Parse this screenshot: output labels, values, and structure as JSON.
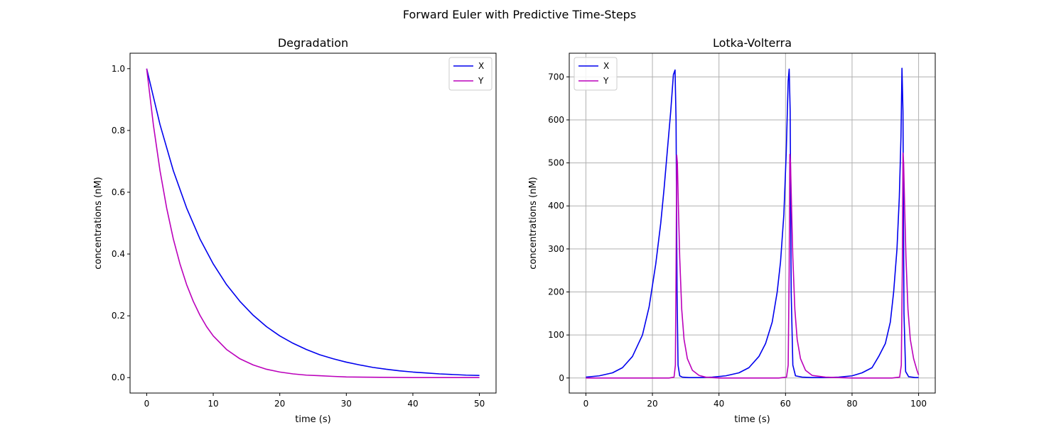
{
  "suptitle": "Forward Euler with Predictive Time-Steps",
  "colors": {
    "X": "#0000ee",
    "Y": "#bb00bb"
  },
  "chart_data": [
    {
      "type": "line",
      "title": "Degradation",
      "xlabel": "time (s)",
      "ylabel": "concentrations (nM)",
      "xlim": [
        -2.5,
        52.5
      ],
      "ylim": [
        -0.05,
        1.05
      ],
      "xticks": [
        0,
        10,
        20,
        30,
        40,
        50
      ],
      "xtick_labels": [
        "0",
        "10",
        "20",
        "30",
        "40",
        "50"
      ],
      "yticks": [
        0.0,
        0.2,
        0.4,
        0.6,
        0.8,
        1.0
      ],
      "ytick_labels": [
        "0.0",
        "0.2",
        "0.4",
        "0.6",
        "0.8",
        "1.0"
      ],
      "grid": false,
      "legend": "upper-right",
      "series": [
        {
          "name": "X",
          "color": "#0000ee",
          "x": [
            0,
            2,
            4,
            6,
            8,
            10,
            12,
            14,
            16,
            18,
            20,
            22,
            24,
            26,
            28,
            30,
            32,
            34,
            36,
            38,
            40,
            42,
            44,
            46,
            48,
            50
          ],
          "y": [
            1.0,
            0.819,
            0.67,
            0.549,
            0.449,
            0.368,
            0.301,
            0.247,
            0.202,
            0.165,
            0.135,
            0.111,
            0.091,
            0.074,
            0.061,
            0.05,
            0.041,
            0.033,
            0.027,
            0.022,
            0.018,
            0.015,
            0.012,
            0.01,
            0.008,
            0.007
          ]
        },
        {
          "name": "Y",
          "color": "#bb00bb",
          "x": [
            0,
            1,
            2,
            3,
            4,
            5,
            6,
            7,
            8,
            9,
            10,
            12,
            14,
            16,
            18,
            20,
            22,
            24,
            26,
            28,
            30,
            35,
            40,
            45,
            50
          ],
          "y": [
            1.0,
            0.819,
            0.67,
            0.549,
            0.449,
            0.368,
            0.301,
            0.247,
            0.202,
            0.165,
            0.135,
            0.091,
            0.061,
            0.041,
            0.027,
            0.018,
            0.012,
            0.008,
            0.006,
            0.004,
            0.002,
            0.001,
            0.0,
            0.0,
            0.0
          ]
        }
      ]
    },
    {
      "type": "line",
      "title": "Lotka-Volterra",
      "xlabel": "time (s)",
      "ylabel": "concentrations (nM)",
      "xlim": [
        -5,
        105
      ],
      "ylim": [
        -35,
        755
      ],
      "xticks": [
        0,
        20,
        40,
        60,
        80,
        100
      ],
      "xtick_labels": [
        "0",
        "20",
        "40",
        "60",
        "80",
        "100"
      ],
      "yticks": [
        0,
        100,
        200,
        300,
        400,
        500,
        600,
        700
      ],
      "ytick_labels": [
        "0",
        "100",
        "200",
        "300",
        "400",
        "500",
        "600",
        "700"
      ],
      "grid": true,
      "legend": "upper-left",
      "series": [
        {
          "name": "X",
          "color": "#0000ee",
          "x": [
            0,
            4,
            8,
            11,
            14,
            17,
            19,
            21,
            22.5,
            23.5,
            24.5,
            25.5,
            26.3,
            26.8,
            27.1,
            27.4,
            27.7,
            28.2,
            29,
            31,
            34,
            38,
            42,
            46,
            49,
            52,
            54,
            56,
            57.5,
            58.5,
            59.5,
            60.2,
            60.8,
            61.1,
            61.4,
            61.7,
            62.2,
            63,
            65,
            68,
            72,
            76,
            80,
            83,
            86,
            88,
            90,
            91.5,
            92.5,
            93.5,
            94.2,
            94.7,
            95.0,
            95.3,
            95.6,
            96.1,
            97,
            99,
            100
          ],
          "y": [
            2,
            5,
            12,
            24,
            50,
            100,
            165,
            265,
            360,
            440,
            530,
            620,
            705,
            716,
            600,
            200,
            30,
            5,
            2,
            1,
            1,
            2,
            5,
            12,
            24,
            50,
            80,
            130,
            200,
            270,
            380,
            520,
            690,
            718,
            620,
            200,
            30,
            5,
            2,
            1,
            1,
            2,
            5,
            12,
            24,
            50,
            80,
            130,
            200,
            300,
            420,
            560,
            720,
            620,
            150,
            15,
            3,
            1,
            1
          ]
        },
        {
          "name": "Y",
          "color": "#bb00bb",
          "x": [
            0,
            10,
            20,
            25,
            26.5,
            26.9,
            27.1,
            27.3,
            27.5,
            27.8,
            28.2,
            28.8,
            29.5,
            30.5,
            32,
            34,
            36,
            40,
            50,
            58,
            60.3,
            60.8,
            61.1,
            61.3,
            61.5,
            61.8,
            62.2,
            62.8,
            63.5,
            64.5,
            66,
            68,
            72,
            80,
            92,
            94.3,
            94.8,
            95.1,
            95.3,
            95.5,
            95.8,
            96.2,
            96.8,
            97.5,
            98.5,
            99.5,
            100
          ],
          "y": [
            0,
            0,
            0,
            0,
            2,
            30,
            250,
            518,
            500,
            400,
            280,
            160,
            90,
            45,
            18,
            6,
            2,
            0,
            0,
            0,
            2,
            30,
            250,
            520,
            500,
            400,
            280,
            160,
            90,
            45,
            18,
            6,
            2,
            0,
            0,
            2,
            30,
            250,
            523,
            500,
            400,
            280,
            160,
            90,
            45,
            18,
            7
          ]
        }
      ]
    }
  ]
}
